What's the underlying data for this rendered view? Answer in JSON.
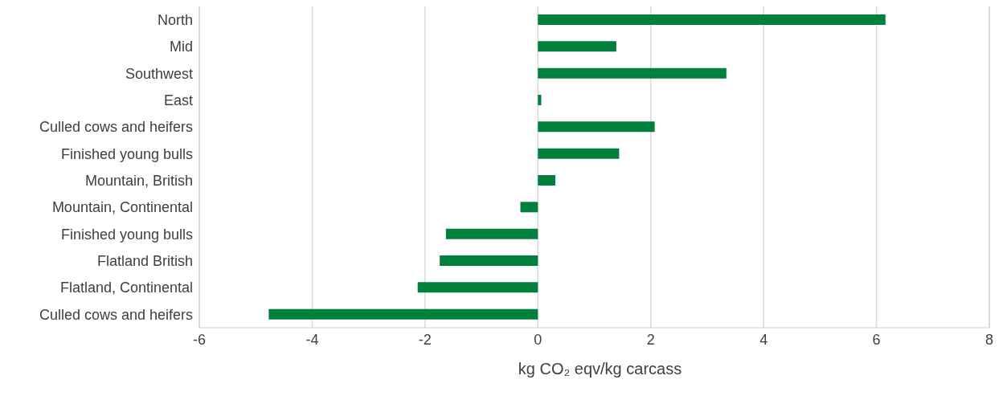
{
  "chart_data": {
    "type": "bar",
    "orientation": "horizontal",
    "xlabel": "kg CO₂ eqv/kg carcass",
    "categories": [
      "North",
      "Mid",
      "Southwest",
      "East",
      "Culled cows and heifers",
      "Finished young bulls",
      "Mountain, British",
      "Mountain, Continental",
      "Finished young bulls",
      "Flatland British",
      "Flatland, Continental",
      "Culled cows and heifers"
    ],
    "values": [
      6.16,
      1.39,
      3.34,
      0.06,
      2.07,
      1.44,
      0.31,
      -0.31,
      -1.63,
      -1.74,
      -2.13,
      -4.77
    ],
    "color": "#00803c",
    "xlim": [
      -6,
      8
    ],
    "xticks": [
      -6,
      -4,
      -2,
      0,
      2,
      4,
      6,
      8
    ],
    "grid": "x"
  }
}
